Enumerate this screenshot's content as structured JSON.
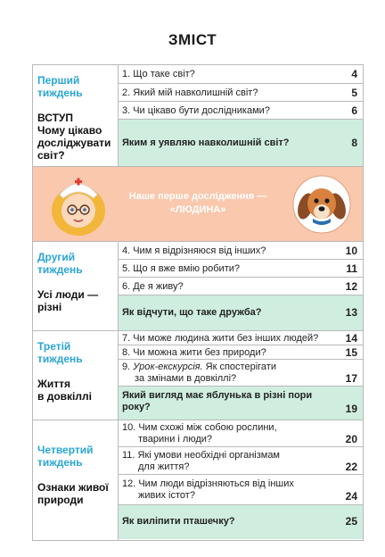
{
  "title": "ЗМІСТ",
  "banner": {
    "line1": "Наше перше дослідження —",
    "line2": "«ЛЮДИНА»"
  },
  "weeks": [
    {
      "label": [
        "Перший",
        "тиждень"
      ],
      "topic": [
        "ВСТУП",
        "Чому цікаво",
        "досліджувати",
        "світ?"
      ],
      "items": [
        {
          "text": [
            "1. Що таке світ?"
          ],
          "page": "4"
        },
        {
          "text": [
            "2. Який мій навколишній світ?"
          ],
          "page": "5"
        },
        {
          "text": [
            "3. Чи цікаво бути дослідниками?"
          ],
          "page": "6"
        },
        {
          "text": [
            "Яким я уявляю навколишній світ?"
          ],
          "page": "8",
          "highlight": true
        }
      ]
    },
    {
      "label": [
        "Другий",
        "тиждень"
      ],
      "topic": [
        "Усі люди —",
        "різні"
      ],
      "items": [
        {
          "text": [
            "4. Чим я відрізняюся від інших?"
          ],
          "page": "10"
        },
        {
          "text": [
            "5. Що я вже вмію робити?"
          ],
          "page": "11"
        },
        {
          "text": [
            "6. Де я живу?"
          ],
          "page": "12"
        },
        {
          "text": [
            "Як відчути, що таке дружба?"
          ],
          "page": "13",
          "highlight": true
        }
      ]
    },
    {
      "label": [
        "Третій",
        "тиждень"
      ],
      "topic": [
        "Життя",
        "в довкіллі"
      ],
      "items": [
        {
          "text": [
            "7. Чи може людина жити без інших людей?"
          ],
          "page": "14"
        },
        {
          "text": [
            "8. Чи можна жити без природи?"
          ],
          "page": "15"
        },
        {
          "text": [
            "9. Урок-екскурсія. Як спостерігати",
            "за змінами в довкіллі?"
          ],
          "page": "17"
        },
        {
          "text": [
            "Який вигляд має яблунька в різні пори",
            "року?"
          ],
          "page": "19",
          "highlight": true
        }
      ]
    },
    {
      "label": [
        "Четвертий",
        "тиждень"
      ],
      "topic": [
        "Ознаки живої",
        "природи"
      ],
      "items": [
        {
          "text": [
            "10. Чим схожі між собою рослини,",
            "тварини і люди?"
          ],
          "page": "20"
        },
        {
          "text": [
            "11. Які умови необхідні організмам",
            "для життя?"
          ],
          "page": "22"
        },
        {
          "text": [
            "12. Чим люди відрізняються від інших",
            "живих істот?"
          ],
          "page": "24"
        },
        {
          "text": [
            "Як виліпити пташечку?"
          ],
          "page": "25",
          "highlight": true
        }
      ]
    }
  ],
  "icons": {
    "nurse": "nurse-girl-icon",
    "dog": "dog-icon"
  }
}
